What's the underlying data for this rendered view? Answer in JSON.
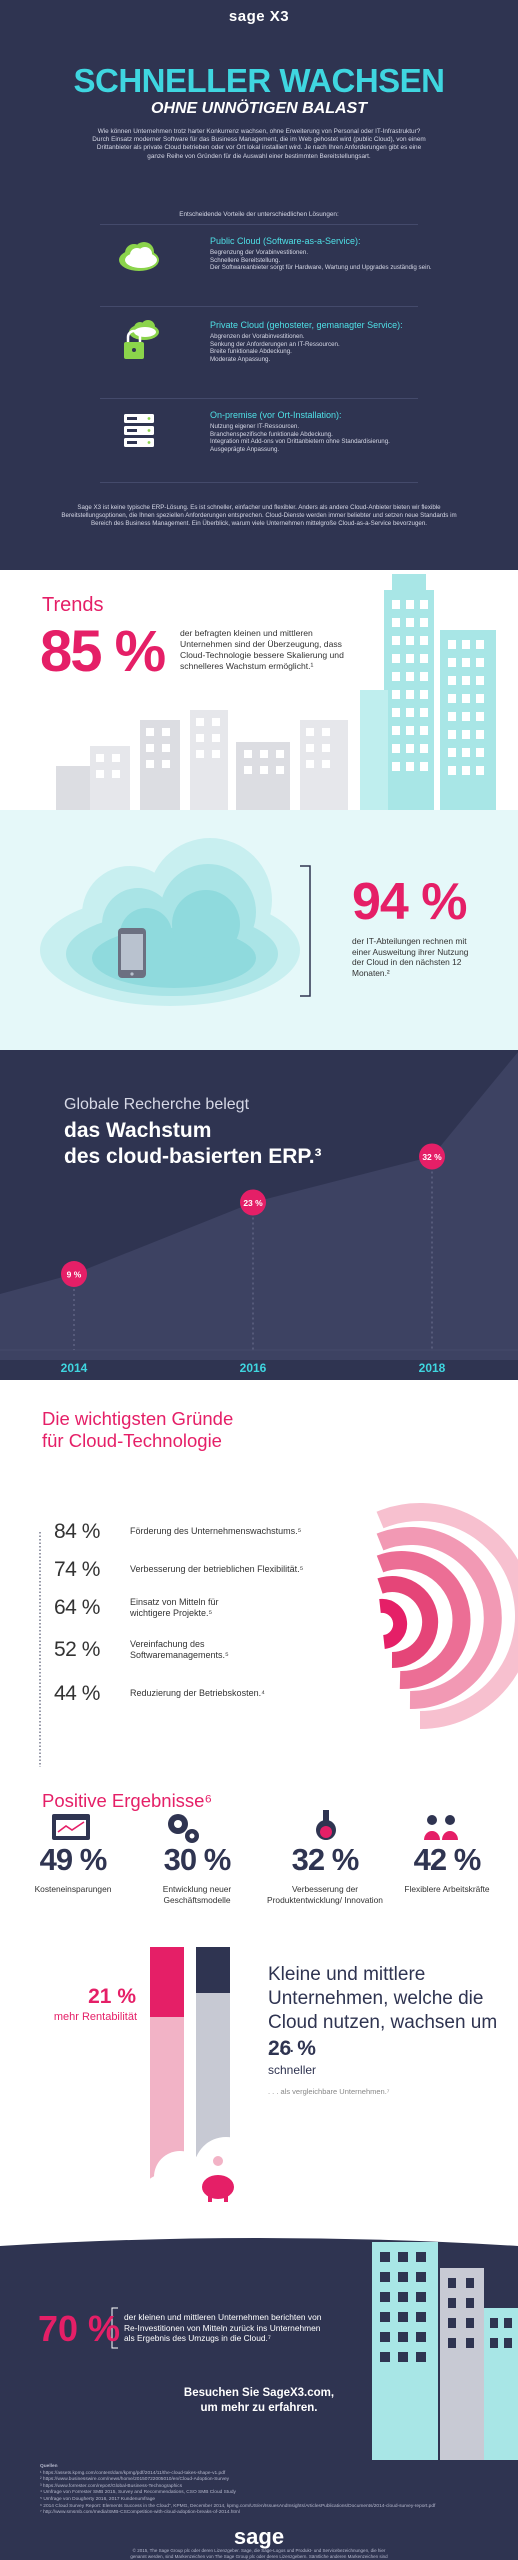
{
  "header": {
    "logo": "sage X3",
    "title": "SCHNELLER WACHSEN",
    "subtitle": "OHNE UNNÖTIGEN BALAST",
    "intro": "Wie können Unternehmen trotz harter Konkurrenz wachsen, ohne Erweiterung von Personal oder IT-Infrastruktur? Durch Einsatz moderner Software für das Business Management, die im Web gehostet wird (public Cloud), von einem Drittanbieter als private Cloud betrieben oder vor Ort lokal installiert wird. Je nach Ihren Anforderungen gibt es eine ganze Reihe von Gründen für die Auswahl einer bestimmten Bereitstellungsart.",
    "lead": "Entscheidende Vorteile der unterschiedlichen Lösungen:",
    "outro": "Sage X3 ist keine typische ERP-Lösung. Es ist schneller, einfacher und flexibler. Anders als andere Cloud-Anbieter bieten wir flexible Bereitstellungsoptionen, die Ihnen speziellen Anforderungen entsprechen. Cloud-Dienste werden immer beliebter und setzen neue Standards im Bereich des Business Management. Ein Überblick, warum viele Unternehmen mittelgroße Cloud-as-a-Service bevorzugen."
  },
  "options": [
    {
      "title": "Public Cloud (Software-as-a-Service):",
      "lines": [
        "Begrenzung der Vorabinvestitionen.",
        "Schnellere Bereitstellung.",
        "Der Softwareanbieter sorgt für Hardware, Wartung und Upgrades zuständig sein."
      ]
    },
    {
      "title": "Private Cloud (gehosteter, gemanagter Service):",
      "lines": [
        "Abgrenzen der Vorabinvestitionen.",
        "Senkung der Anforderungen an IT-Ressourcen.",
        "Breite funktionale Abdeckung.",
        "Moderate Anpassung."
      ]
    },
    {
      "title": "On-premise (vor Ort-Installation):",
      "lines": [
        "Nutzung eigener IT-Ressourcen.",
        "Branchenspezifische funktionale Abdeckung.",
        "Integration mit Add-ons von Drittanbietern ohne Standardisierung.",
        "Ausgeprägte Anpassung."
      ]
    }
  ],
  "trends": {
    "label": "Trends",
    "value": "85 %",
    "text": "der befragten kleinen und mittleren Unternehmen sind der Überzeugung, dass Cloud-Technologie bessere Skalierung und schnelleres Wachstum ermöglicht.¹"
  },
  "it": {
    "value": "94 %",
    "text": "der IT-Abteilungen rechnen mit einer Ausweitung ihrer Nutzung der Cloud in den nächsten 12 Monaten.²"
  },
  "chart_data": {
    "type": "area",
    "title_line1": "Globale Recherche belegt",
    "title_line2": "das Wachstum",
    "title_line3": "des cloud-basierten ERP.³",
    "x": [
      "2014",
      "2016",
      "2018"
    ],
    "values": [
      9,
      23,
      32
    ],
    "labels": [
      "9 %",
      "23 %",
      "32 %"
    ],
    "ylim": [
      0,
      45
    ],
    "colors": {
      "area": "#3d4262",
      "point": "#e51f67",
      "line": "#5a5f7e"
    }
  },
  "reasons": {
    "title_line1": "Die wichtigsten Gründe",
    "title_line2": "für Cloud-Technologie",
    "items": [
      {
        "value": "84 %",
        "text": "Förderung des Unternehmenswachstums.⁵"
      },
      {
        "value": "74 %",
        "text": "Verbesserung der betrieblichen Flexibilität.⁵"
      },
      {
        "value": "64 %",
        "text": "Einsatz von Mitteln für wichtigere Projekte.⁵"
      },
      {
        "value": "52 %",
        "text": "Vereinfachung des Softwaremanagements.⁵"
      },
      {
        "value": "44 %",
        "text": "Reduzierung der Betriebskosten.⁴"
      }
    ]
  },
  "positive": {
    "title": "Positive Ergebnisse⁶",
    "items": [
      {
        "value": "49 %",
        "label": "Kosteneinsparungen"
      },
      {
        "value": "30 %",
        "label": "Entwicklung neuer Geschäftsmodelle"
      },
      {
        "value": "32 %",
        "label": "Verbesserung der Produktentwicklung/ Innovation"
      },
      {
        "value": "42 %",
        "label": "Flexiblere Arbeitskräfte"
      }
    ]
  },
  "growth": {
    "profit_value": "21 %",
    "profit_label": "mehr Rentabilität",
    "headline": "Kleine und mittlere Unternehmen, welche die Cloud nutzen, wachsen um . . .",
    "growth_value": "26 %",
    "growth_label": "schneller",
    "compare": ". . . als vergleichbare Unternehmen.⁷"
  },
  "reinvest": {
    "value": "70 %",
    "text": "der kleinen und mittleren Unternehmen berichten von Re-Investitionen von Mitteln zurück ins Unternehmen als Ergebnis des Umzugs in die Cloud.⁷",
    "cta_line1": "Besuchen Sie SageX3.com,",
    "cta_line2": "um mehr zu erfahren."
  },
  "footer": {
    "sources_title": "Quellen",
    "sources": [
      "¹ https://assets.kpmg.com/content/dam/kpmg/pdf/2014/11/the-cloud-takes-shape-v1.pdf",
      "² https://www.businesswire.com/news/home/20150722005010/en/Cloud-Adoption-Survey",
      "³ https://www.forrester.com/report/Global-Business-Technographics",
      "⁴ Umfrage von Forrester SMB 2015, Survey and Recommendations, CSO SMB Cloud Study",
      "⁵ Umfrage von Dougherty 2016, 2017 Kundenumfrage",
      "⁶ 2014 Cloud Survey Report: Elements Success in the Cloud\", KPMG, December 2014, kpmg.com/US/en/IssuesAndInsights/ArticlesPublications/Documents/2014-cloud-survey-report.pdf",
      "⁷ http://www.smsmb.com/media/SMB-CSCompetition-with-cloud-adoption-breaks-of-2014.html"
    ],
    "logo": "sage",
    "copyright": "© 2015, The Sage Group plc oder deren Lizenzgeber. Sage, die Sage-Logos und Produkt- und Servicebezeichnungen, die hier genannt werden, sind Markenzeichen von The Sage Group plc oder deren Lizenzgebern. Sämtliche anderen Markenzeichen sind Eigentum ihrer jeweiligen Eigner."
  }
}
